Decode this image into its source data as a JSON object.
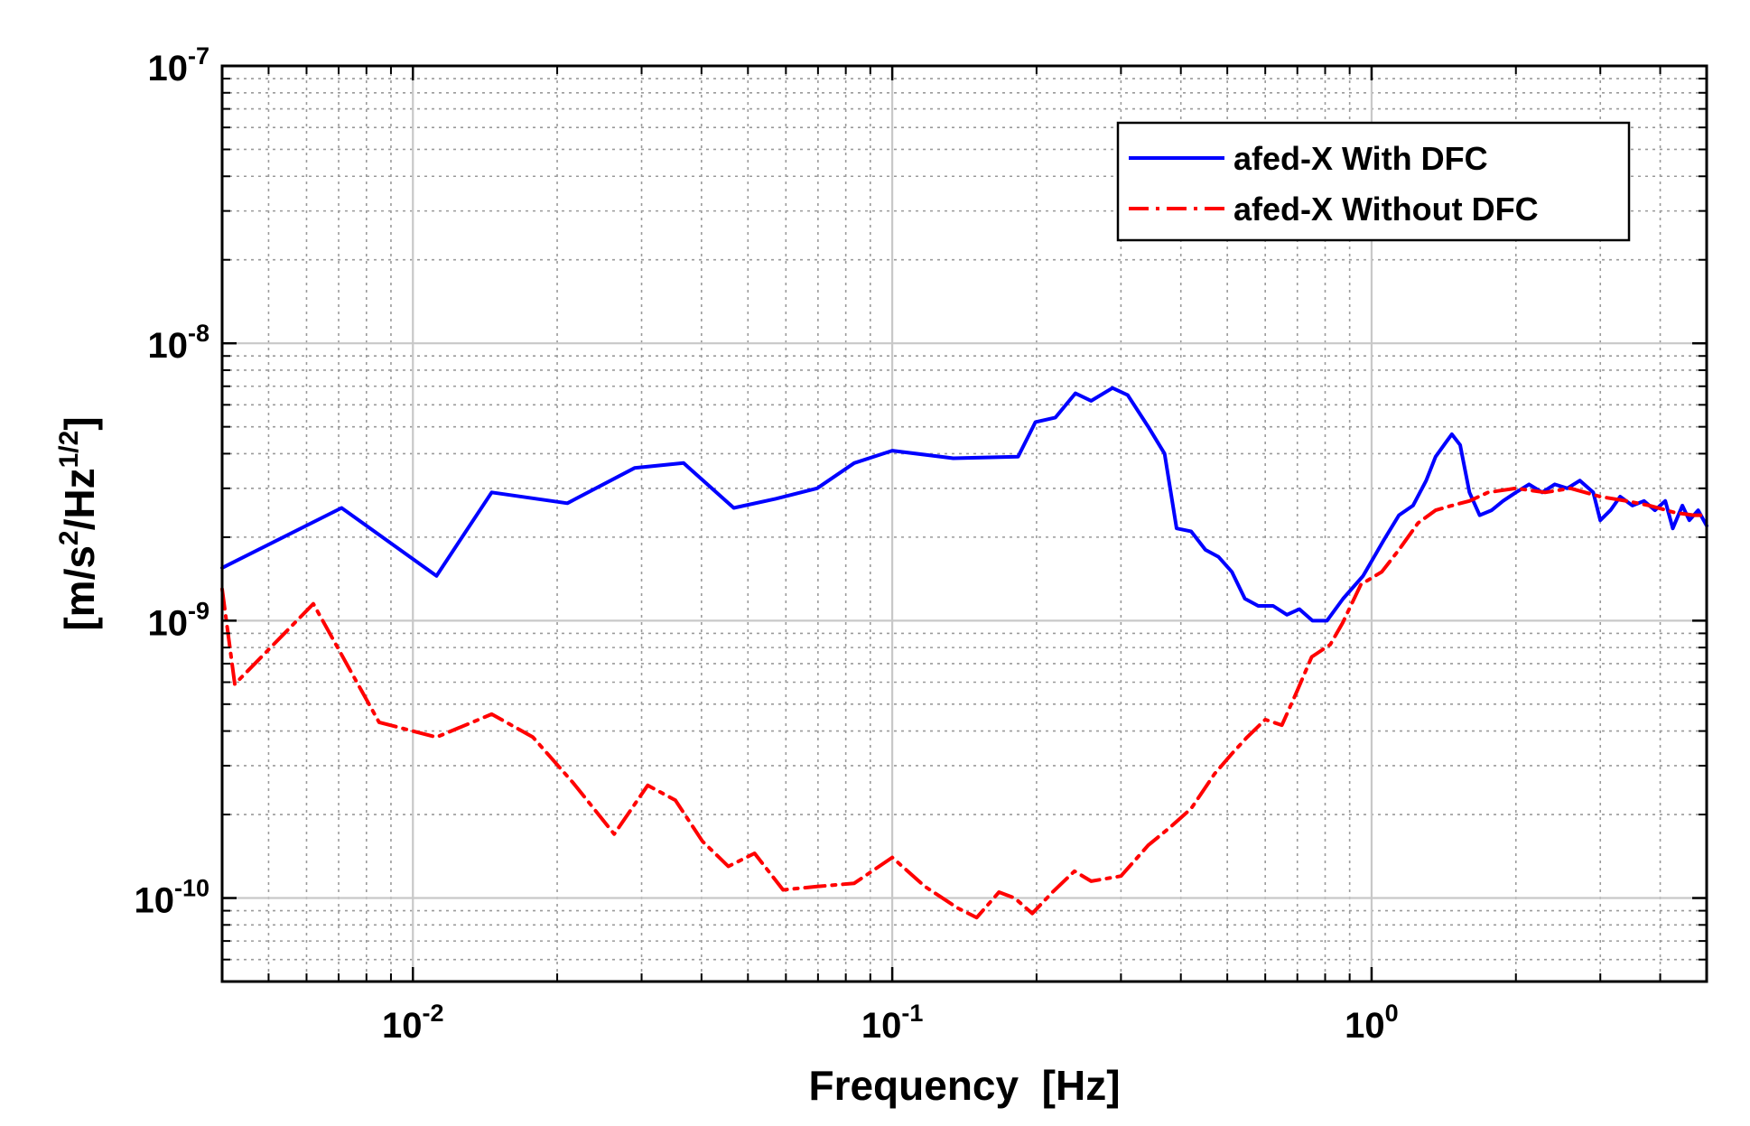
{
  "chart_data": {
    "type": "line",
    "title": "",
    "xlabel": "Frequency  [Hz]",
    "ylabel": "[m/s²/Hz¹ᐟ²]",
    "ylabel_parts": {
      "pre": "[m/s",
      "exp1": "2",
      "mid": "/Hz",
      "exp2": "1/2",
      "post": "]"
    },
    "x_scale": "log",
    "y_scale": "log",
    "xlim": [
      0.004,
      5.0
    ],
    "ylim": [
      5e-11,
      1e-07
    ],
    "grid": true,
    "legend_position": "top-right",
    "x_ticks": [
      {
        "value": 0.01,
        "base": "10",
        "exp": "-2"
      },
      {
        "value": 0.1,
        "base": "10",
        "exp": "-1"
      },
      {
        "value": 1,
        "base": "10",
        "exp": "0"
      }
    ],
    "y_ticks": [
      {
        "value": 1e-10,
        "base": "10",
        "exp": "-10"
      },
      {
        "value": 1e-09,
        "base": "10",
        "exp": "-9"
      },
      {
        "value": 1e-08,
        "base": "10",
        "exp": "-8"
      },
      {
        "value": 1e-07,
        "base": "10",
        "exp": "-7"
      }
    ],
    "series": [
      {
        "name": "afed-X With DFC",
        "color": "#0000ff",
        "dash": "solid",
        "points": [
          [
            0.004,
            1.55e-09
          ],
          [
            0.0071,
            2.55e-09
          ],
          [
            0.0112,
            1.45e-09
          ],
          [
            0.0146,
            2.9e-09
          ],
          [
            0.021,
            2.65e-09
          ],
          [
            0.029,
            3.55e-09
          ],
          [
            0.0367,
            3.7e-09
          ],
          [
            0.0467,
            2.55e-09
          ],
          [
            0.0571,
            2.75e-09
          ],
          [
            0.0697,
            3e-09
          ],
          [
            0.0833,
            3.7e-09
          ],
          [
            0.1,
            4.1e-09
          ],
          [
            0.134,
            3.85e-09
          ],
          [
            0.183,
            3.9e-09
          ],
          [
            0.199,
            5.2e-09
          ],
          [
            0.219,
            5.4e-09
          ],
          [
            0.241,
            6.6e-09
          ],
          [
            0.26,
            6.2e-09
          ],
          [
            0.288,
            6.9e-09
          ],
          [
            0.31,
            6.5e-09
          ],
          [
            0.342,
            5e-09
          ],
          [
            0.37,
            4e-09
          ],
          [
            0.392,
            2.15e-09
          ],
          [
            0.42,
            2.1e-09
          ],
          [
            0.45,
            1.8e-09
          ],
          [
            0.479,
            1.7e-09
          ],
          [
            0.511,
            1.5e-09
          ],
          [
            0.544,
            1.2e-09
          ],
          [
            0.58,
            1.13e-09
          ],
          [
            0.623,
            1.13e-09
          ],
          [
            0.666,
            1.05e-09
          ],
          [
            0.707,
            1.1e-09
          ],
          [
            0.753,
            1e-09
          ],
          [
            0.807,
            1e-09
          ],
          [
            0.872,
            1.2e-09
          ],
          [
            0.96,
            1.45e-09
          ],
          [
            1.06,
            1.95e-09
          ],
          [
            1.14,
            2.4e-09
          ],
          [
            1.22,
            2.6e-09
          ],
          [
            1.3,
            3.2e-09
          ],
          [
            1.36,
            3.9e-09
          ],
          [
            1.43,
            4.4e-09
          ],
          [
            1.47,
            4.7e-09
          ],
          [
            1.53,
            4.3e-09
          ],
          [
            1.6,
            2.9e-09
          ],
          [
            1.68,
            2.4e-09
          ],
          [
            1.78,
            2.5e-09
          ],
          [
            1.88,
            2.7e-09
          ],
          [
            2.0,
            2.9e-09
          ],
          [
            2.13,
            3.1e-09
          ],
          [
            2.27,
            2.9e-09
          ],
          [
            2.41,
            3.1e-09
          ],
          [
            2.56,
            3e-09
          ],
          [
            2.72,
            3.2e-09
          ],
          [
            2.9,
            2.9e-09
          ],
          [
            3.0,
            2.3e-09
          ],
          [
            3.15,
            2.5e-09
          ],
          [
            3.3,
            2.8e-09
          ],
          [
            3.5,
            2.6e-09
          ],
          [
            3.7,
            2.7e-09
          ],
          [
            3.9,
            2.5e-09
          ],
          [
            4.1,
            2.7e-09
          ],
          [
            4.25,
            2.15e-09
          ],
          [
            4.45,
            2.6e-09
          ],
          [
            4.6,
            2.3e-09
          ],
          [
            4.8,
            2.5e-09
          ],
          [
            5.0,
            2.2e-09
          ]
        ]
      },
      {
        "name": "afed-X Without DFC",
        "color": "#ff0000",
        "dash": "dashdot",
        "points": [
          [
            0.004,
            1.3e-09
          ],
          [
            0.00425,
            5.9e-10
          ],
          [
            0.0062,
            1.15e-09
          ],
          [
            0.0085,
            4.3e-10
          ],
          [
            0.0112,
            3.8e-10
          ],
          [
            0.0146,
            4.6e-10
          ],
          [
            0.0178,
            3.8e-10
          ],
          [
            0.0216,
            2.6e-10
          ],
          [
            0.0263,
            1.7e-10
          ],
          [
            0.0309,
            2.55e-10
          ],
          [
            0.0353,
            2.25e-10
          ],
          [
            0.0402,
            1.6e-10
          ],
          [
            0.0455,
            1.3e-10
          ],
          [
            0.0516,
            1.45e-10
          ],
          [
            0.0592,
            1.07e-10
          ],
          [
            0.0697,
            1.1e-10
          ],
          [
            0.0833,
            1.13e-10
          ],
          [
            0.1,
            1.4e-10
          ],
          [
            0.117,
            1.1e-10
          ],
          [
            0.137,
            9.2e-11
          ],
          [
            0.15,
            8.5e-11
          ],
          [
            0.167,
            1.05e-10
          ],
          [
            0.18,
            1e-10
          ],
          [
            0.196,
            8.8e-11
          ],
          [
            0.216,
            1.05e-10
          ],
          [
            0.24,
            1.25e-10
          ],
          [
            0.26,
            1.15e-10
          ],
          [
            0.3,
            1.2e-10
          ],
          [
            0.342,
            1.55e-10
          ],
          [
            0.38,
            1.8e-10
          ],
          [
            0.42,
            2.1e-10
          ],
          [
            0.47,
            2.8e-10
          ],
          [
            0.51,
            3.3e-10
          ],
          [
            0.55,
            3.8e-10
          ],
          [
            0.6,
            4.4e-10
          ],
          [
            0.65,
            4.2e-10
          ],
          [
            0.7,
            5.6e-10
          ],
          [
            0.75,
            7.4e-10
          ],
          [
            0.82,
            8.2e-10
          ],
          [
            0.87,
            9.8e-10
          ],
          [
            0.95,
            1.35e-09
          ],
          [
            1.05,
            1.5e-09
          ],
          [
            1.14,
            1.8e-09
          ],
          [
            1.25,
            2.25e-09
          ],
          [
            1.36,
            2.5e-09
          ],
          [
            1.47,
            2.6e-09
          ],
          [
            1.6,
            2.7e-09
          ],
          [
            1.75,
            2.9e-09
          ],
          [
            2.0,
            3e-09
          ],
          [
            2.3,
            2.9e-09
          ],
          [
            2.6,
            3e-09
          ],
          [
            3.0,
            2.8e-09
          ],
          [
            3.4,
            2.7e-09
          ],
          [
            3.8,
            2.6e-09
          ],
          [
            4.3,
            2.45e-09
          ],
          [
            4.7,
            2.4e-09
          ],
          [
            5.0,
            2.4e-09
          ]
        ]
      }
    ]
  }
}
